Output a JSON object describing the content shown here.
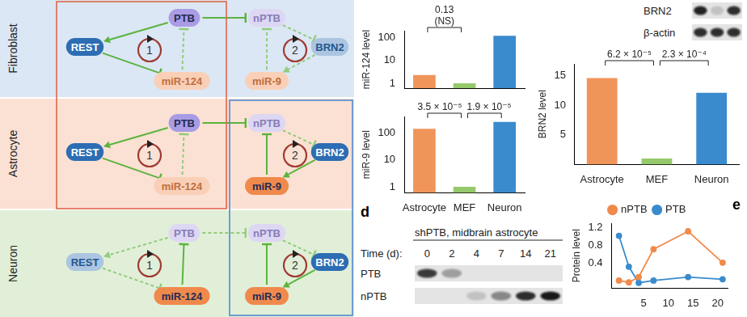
{
  "diagram": {
    "loops": [
      "1",
      "2"
    ],
    "rows": [
      {
        "label": "Fibroblast",
        "color": "#dbe7f4",
        "nodes": [
          {
            "label": "REST",
            "color": "#2c6db3",
            "active": true
          },
          {
            "label": "PTB",
            "color": "#a99ce4",
            "active": true
          },
          {
            "label": "miR-124",
            "color": "#ef8a4c",
            "active": false
          },
          {
            "label": "nPTB",
            "color": "#a99ce4",
            "active": false
          },
          {
            "label": "BRN2",
            "color": "#2c6db3",
            "active": false
          },
          {
            "label": "miR-9",
            "color": "#ef8a4c",
            "active": false
          }
        ],
        "edges": [
          {
            "from": 1,
            "to": 0,
            "kind": "activate",
            "active": true
          },
          {
            "from": 0,
            "to": 2,
            "kind": "inhibit",
            "active": true
          },
          {
            "from": 2,
            "to": 1,
            "kind": "inhibit",
            "active": false
          },
          {
            "from": 1,
            "to": 3,
            "kind": "inhibit",
            "active": true
          },
          {
            "from": 3,
            "to": 4,
            "kind": "inhibit",
            "active": false
          },
          {
            "from": 4,
            "to": 5,
            "kind": "activate",
            "active": false
          },
          {
            "from": 5,
            "to": 3,
            "kind": "inhibit",
            "active": false
          }
        ]
      },
      {
        "label": "Astrocyte",
        "color": "#fbe1d3",
        "nodes": [
          {
            "label": "REST",
            "color": "#2c6db3",
            "active": true
          },
          {
            "label": "PTB",
            "color": "#a99ce4",
            "active": true
          },
          {
            "label": "miR-124",
            "color": "#ef8a4c",
            "active": false
          },
          {
            "label": "nPTB",
            "color": "#a99ce4",
            "active": false
          },
          {
            "label": "BRN2",
            "color": "#2c6db3",
            "active": true
          },
          {
            "label": "miR-9",
            "color": "#ef8a4c",
            "active": true
          }
        ],
        "edges": [
          {
            "from": 1,
            "to": 0,
            "kind": "activate",
            "active": true
          },
          {
            "from": 0,
            "to": 2,
            "kind": "inhibit",
            "active": true
          },
          {
            "from": 2,
            "to": 1,
            "kind": "inhibit",
            "active": false
          },
          {
            "from": 1,
            "to": 3,
            "kind": "inhibit",
            "active": true
          },
          {
            "from": 3,
            "to": 4,
            "kind": "inhibit",
            "active": false
          },
          {
            "from": 4,
            "to": 5,
            "kind": "activate",
            "active": true
          },
          {
            "from": 5,
            "to": 3,
            "kind": "inhibit",
            "active": true
          }
        ]
      },
      {
        "label": "Neuron",
        "color": "#e1efd8",
        "nodes": [
          {
            "label": "REST",
            "color": "#2c6db3",
            "active": false
          },
          {
            "label": "PTB",
            "color": "#a99ce4",
            "active": false
          },
          {
            "label": "miR-124",
            "color": "#ef8a4c",
            "active": true
          },
          {
            "label": "nPTB",
            "color": "#a99ce4",
            "active": false
          },
          {
            "label": "BRN2",
            "color": "#2c6db3",
            "active": true
          },
          {
            "label": "miR-9",
            "color": "#ef8a4c",
            "active": true
          }
        ],
        "edges": [
          {
            "from": 1,
            "to": 0,
            "kind": "activate",
            "active": false
          },
          {
            "from": 0,
            "to": 2,
            "kind": "inhibit",
            "active": false
          },
          {
            "from": 2,
            "to": 1,
            "kind": "inhibit",
            "active": true
          },
          {
            "from": 1,
            "to": 3,
            "kind": "inhibit",
            "active": false
          },
          {
            "from": 3,
            "to": 4,
            "kind": "inhibit",
            "active": false
          },
          {
            "from": 4,
            "to": 5,
            "kind": "activate",
            "active": true
          },
          {
            "from": 5,
            "to": 3,
            "kind": "inhibit",
            "active": true
          }
        ]
      }
    ]
  },
  "blots": [
    {
      "rows": [
        {
          "label": "BRN2",
          "bands": [
            0.9,
            0.15,
            0.85
          ]
        },
        {
          "label": "β-actin",
          "bands": [
            0.85,
            0.85,
            0.85
          ]
        }
      ]
    },
    {
      "panel": "d",
      "title": "shPTB, midbrain astrocyte",
      "lane_header": "Time (d):",
      "lanes": [
        "0",
        "2",
        "4",
        "7",
        "14",
        "21"
      ],
      "rows": [
        {
          "label": "PTB",
          "bands": [
            0.8,
            0.35,
            0.0,
            0.0,
            0.0,
            0.0
          ]
        },
        {
          "label": "nPTB",
          "bands": [
            0.0,
            0.0,
            0.15,
            0.45,
            0.85,
            0.95
          ]
        }
      ]
    }
  ],
  "chart_data": [
    {
      "type": "bar",
      "y_label": "miR-124 level",
      "categories": [
        "Astrocyte",
        "MEF",
        "Neuron"
      ],
      "values": [
        2.3,
        1.0,
        120
      ],
      "colors": [
        "#f0955a",
        "#96c96b",
        "#3a8bcd"
      ],
      "log": "y",
      "ylim": [
        0.6,
        200
      ],
      "yticks": [
        1,
        10,
        100
      ],
      "grid": false,
      "tick_labels": "y",
      "annotations": [
        {
          "pair": [
            0,
            1
          ],
          "text": [
            "0.13",
            "(NS)"
          ]
        }
      ]
    },
    {
      "type": "bar",
      "y_label": "miR-9 level",
      "categories": [
        "Astrocyte",
        "MEF",
        "Neuron"
      ],
      "values": [
        140,
        1.0,
        250
      ],
      "colors": [
        "#f0955a",
        "#96c96b",
        "#3a8bcd"
      ],
      "log": "y",
      "ylim": [
        0.6,
        400
      ],
      "yticks": [
        1,
        10,
        100
      ],
      "grid": false,
      "annotations": [
        {
          "pair": [
            0,
            1
          ],
          "text": [
            "3.5 × 10⁻⁵"
          ]
        },
        {
          "pair": [
            1,
            2
          ],
          "text": [
            "1.9 × 10⁻⁵"
          ]
        }
      ]
    },
    {
      "type": "bar",
      "y_label": "BRN2 level",
      "categories": [
        "Astrocyte",
        "MEF",
        "Neuron"
      ],
      "values": [
        14.6,
        1.0,
        12.1
      ],
      "colors": [
        "#f0955a",
        "#96c96b",
        "#3a8bcd"
      ],
      "ylim": [
        0,
        17
      ],
      "yticks": [
        0,
        5,
        10,
        15
      ],
      "grid": false,
      "annotations": [
        {
          "pair": [
            0,
            1
          ],
          "text": [
            "6.2 × 10⁻⁵"
          ]
        },
        {
          "pair": [
            1,
            2
          ],
          "text": [
            "2.3 × 10⁻⁴"
          ]
        }
      ]
    },
    {
      "type": "line",
      "panel": "e",
      "y_label": "Protein level",
      "x": [
        0,
        2,
        4,
        7,
        14,
        21
      ],
      "xlim": [
        -1.5,
        22
      ],
      "xticks": [
        0,
        5,
        10,
        15,
        20
      ],
      "ylim": [
        -0.15,
        1.3
      ],
      "yticks": [
        0,
        0.4,
        0.8,
        1.2
      ],
      "grid": false,
      "legend": "top",
      "series": [
        {
          "name": "nPTB",
          "color": "#f08a4b",
          "marker": "circle",
          "values": [
            0.02,
            -0.02,
            0.1,
            0.72,
            1.12,
            0.42
          ]
        },
        {
          "name": "PTB",
          "color": "#3a8bcd",
          "marker": "circle",
          "values": [
            1.02,
            0.33,
            -0.03,
            0.02,
            0.1,
            0.05
          ]
        }
      ]
    }
  ]
}
